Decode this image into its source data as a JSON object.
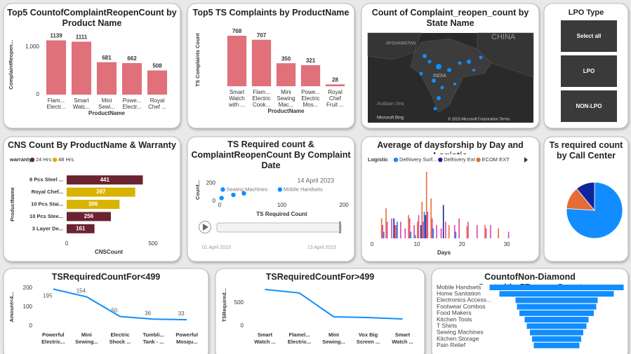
{
  "chart_data": [
    {
      "type": "bar",
      "title": "Top5 CountofComplaintReopenCount by Product Name",
      "categories": [
        "Flam...\nElectr...",
        "Smart\nWatc...",
        "Mini\nSewi...",
        "Powe...\nElectr...",
        "Royal\nChef ..."
      ],
      "values": [
        1139,
        1111,
        681,
        662,
        508
      ],
      "color": "#e0707a",
      "ylim": [
        0,
        1250
      ],
      "yticks": [
        0,
        {
          "value": 1000,
          "label": "1,000"
        }
      ],
      "xlabel": "ProductName",
      "ylabel": "ComplaintReopen..."
    },
    {
      "type": "bar",
      "title": "Top5 TS Complaints by ProductName",
      "categories": [
        "Smart\nWatch\nwith ...",
        "Flam...\nElectric\nCook...",
        "Mini\nSewing\nMac...",
        "Powe...\nElectric\nMos...",
        "Royal\nChef\nFruit ..."
      ],
      "values": [
        768,
        707,
        350,
        321,
        28
      ],
      "color": "#e0707a",
      "ylim": [
        0,
        800
      ],
      "xlabel": "ProductName",
      "ylabel": "TS Complaints Count"
    },
    {
      "type": "barh",
      "title": "CNS Count By ProductName & Warranty",
      "legend_title": "warranty",
      "categories": [
        "8 Pcs Steel ...",
        "Royal Chef...",
        "10 Pcs Stai...",
        "10 Pcs Stee...",
        "3 Layer De..."
      ],
      "series": [
        {
          "name": "24 Hrs",
          "color": "#6b2331",
          "values": [
            441,
            null,
            null,
            256,
            161
          ]
        },
        {
          "name": "48 Hrs",
          "color": "#d9b300",
          "values": [
            null,
            397,
            306,
            null,
            null
          ]
        }
      ],
      "xlim": [
        0,
        500
      ],
      "xticks": [
        0,
        500
      ],
      "xlabel": "CNSCount",
      "ylabel": "ProductName"
    },
    {
      "type": "scatter",
      "title": "TS Required count & ComplaintReopenCount By Complaint Date",
      "x": [
        3,
        5,
        22,
        39,
        97
      ],
      "values": [
        35,
        130,
        70,
        87,
        130
      ],
      "labels": [
        null,
        "Sewing Machines",
        null,
        null,
        "Mobile Handsets"
      ],
      "color": "#118dff",
      "xlim": [
        0,
        200
      ],
      "xticks": [
        0,
        100,
        200
      ],
      "ylim": [
        0,
        250
      ],
      "yticks": [
        0,
        200
      ],
      "annotation": "14 April 2023",
      "xlabel": "TS Required Count",
      "ylabel": "Count...",
      "play_labels": [
        "01 April 2023",
        "13 April 2023"
      ]
    },
    {
      "type": "column",
      "title": "Average of daysforship by Day and Logistic",
      "legend_title": "Logistic",
      "x": [
        1,
        2,
        3,
        4,
        5,
        6,
        7,
        8,
        9,
        10,
        11,
        12,
        13,
        14,
        15,
        16,
        17,
        18,
        19,
        20,
        21,
        22,
        23,
        24,
        25,
        26,
        27,
        28,
        29,
        30
      ],
      "series": [
        {
          "name": "Delhivery Surf...",
          "color": "#118dff",
          "values": [
            null,
            null,
            10,
            null,
            null,
            25,
            null,
            null,
            10,
            5,
            null,
            40,
            null,
            15,
            null,
            null,
            null,
            null,
            10,
            null,
            null,
            null,
            null,
            null,
            null,
            null,
            null,
            null,
            null,
            null
          ]
        },
        {
          "name": "Delhivery Ext",
          "color": "#12239e",
          "values": [
            null,
            null,
            null,
            null,
            30,
            null,
            null,
            null,
            null,
            null,
            20,
            35,
            null,
            null,
            null,
            50,
            null,
            null,
            null,
            null,
            null,
            null,
            null,
            null,
            null,
            null,
            null,
            null,
            null,
            null
          ]
        },
        {
          "name": "ECOM EXT",
          "color": "#e66c37",
          "values": [
            null,
            30,
            45,
            null,
            20,
            null,
            null,
            35,
            null,
            25,
            55,
            100,
            60,
            null,
            null,
            null,
            20,
            null,
            null,
            null,
            18,
            null,
            null,
            null,
            20,
            null,
            null,
            15,
            null,
            null
          ]
        },
        {
          "color": "#e044a7",
          "values": [
            null,
            20,
            25,
            30,
            20,
            25,
            15,
            30,
            20,
            35,
            25,
            40,
            30,
            20,
            15,
            25,
            null,
            20,
            30,
            null,
            25,
            null,
            20,
            null,
            15,
            20,
            null,
            null,
            null,
            10
          ]
        }
      ],
      "xlim": [
        0,
        32
      ],
      "xticks": [
        0,
        10,
        20,
        30
      ],
      "ylim": [
        0,
        100
      ],
      "xlabel": "Days"
    },
    {
      "type": "pie",
      "title": "Ts required count by Call Center",
      "values": [
        76,
        13,
        11
      ],
      "colors": [
        "#118dff",
        "#e66c37",
        "#12239e"
      ]
    },
    {
      "type": "line",
      "title": "TSRequiredCountFor<499",
      "categories": [
        "Powerful\nElectric...",
        "Mini\nSewing...",
        "Electric\nShock ...",
        "Tumbli...\nTank - ...",
        "Powerful\nMosqu..."
      ],
      "values": [
        195,
        154,
        50,
        36,
        33
      ],
      "show_values": true,
      "color": "#118dff",
      "ylim": [
        0,
        200
      ],
      "yticks": [
        0,
        100,
        200
      ],
      "ylabel": "Amount<4..."
    },
    {
      "type": "line",
      "title": "TSRequiredCountFor>499",
      "categories": [
        "Smart\nWatch ...",
        "Flamel...\nElectric...",
        "Mini\nSewing...",
        "Vox Big\nScreen ...",
        "Smart\nWatch ..."
      ],
      "values": [
        788,
        712,
        197,
        182,
        152
      ],
      "show_values": false,
      "color": "#118dff",
      "ylim": [
        0,
        900
      ],
      "yticks": [
        0,
        500
      ],
      "ylabel": "TSRequired..."
    },
    {
      "type": "funnel",
      "title": "CountofNon-Diamond Custwith>5ReopenCount",
      "categories": [
        "Mobile Handsets",
        "Home Sanitation",
        "Electronics Access...",
        "Footwear Combos",
        "Food Makers",
        "Kitchen Tools",
        "T Shirts",
        "Sewing Machines",
        "Kitchen Storage",
        "Pain Relief"
      ],
      "values": [
        191,
        163,
        117,
        113,
        106,
        91,
        85,
        76,
        70,
        65
      ],
      "color": "#118dff"
    }
  ],
  "map": {
    "title": "Count of Complaint_reopen_count by State Name",
    "labels": [
      "AFGHANISTAN",
      "CHINA",
      "INDIA",
      "Arabian Sea",
      "Microsoft Bing",
      "© 2023 Microsoft Corporation  Terms"
    ]
  },
  "slicer": {
    "title": "LPO Type",
    "options": [
      "Select all",
      "LPO",
      "NON-LPO"
    ]
  }
}
